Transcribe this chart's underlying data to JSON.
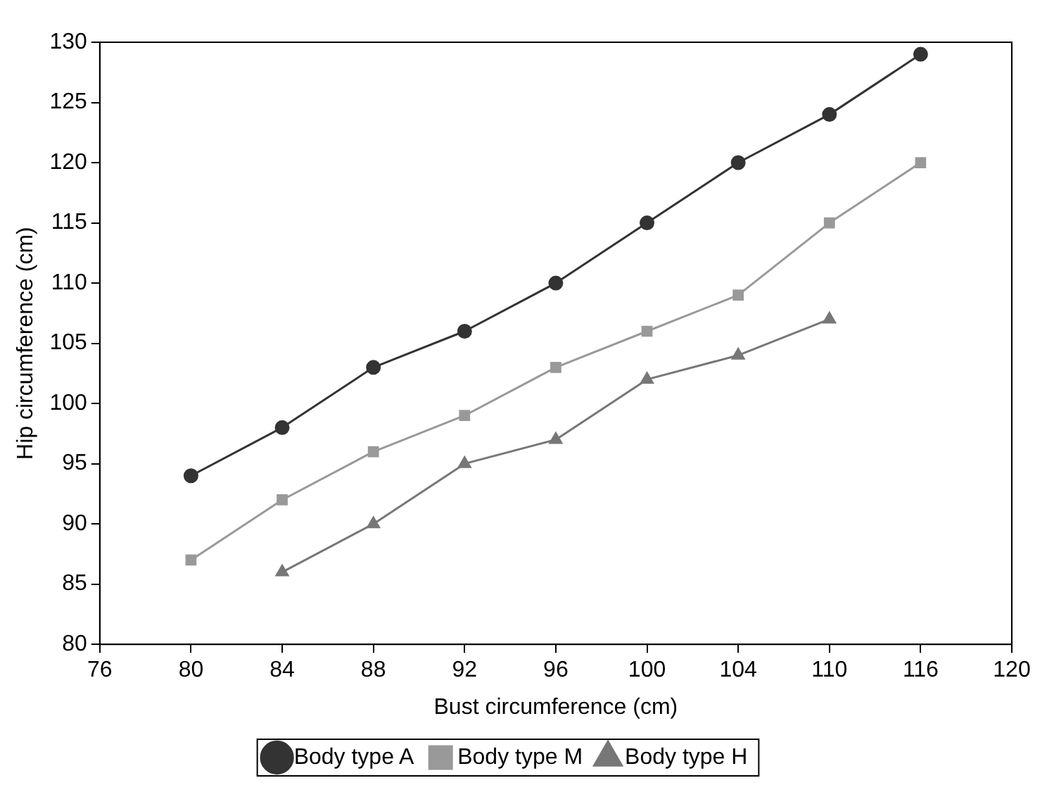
{
  "chart_data": {
    "type": "line",
    "xlabel": "Bust circumference (cm)",
    "ylabel": "Hip circumference (cm)",
    "categories": [
      "76",
      "80",
      "84",
      "88",
      "92",
      "96",
      "100",
      "104",
      "110",
      "116",
      "120"
    ],
    "ylim": [
      80,
      130
    ],
    "yticks": [
      80,
      85,
      90,
      95,
      100,
      105,
      110,
      115,
      120,
      125,
      130
    ],
    "grid": false,
    "legend": "bottom",
    "line_style": "solid",
    "series": [
      {
        "name": "Body type A",
        "color": "#333333",
        "marker": "circle",
        "values": [
          null,
          94,
          98,
          103,
          106,
          110,
          115,
          120,
          124,
          129,
          null
        ]
      },
      {
        "name": "Body type M",
        "color": "#999999",
        "marker": "square",
        "values": [
          null,
          87,
          92,
          96,
          99,
          103,
          106,
          109,
          115,
          120,
          null
        ]
      },
      {
        "name": "Body type H",
        "color": "#777777",
        "marker": "triangle",
        "values": [
          null,
          null,
          86,
          90,
          95,
          97,
          102,
          104,
          107,
          null,
          null
        ]
      }
    ]
  }
}
